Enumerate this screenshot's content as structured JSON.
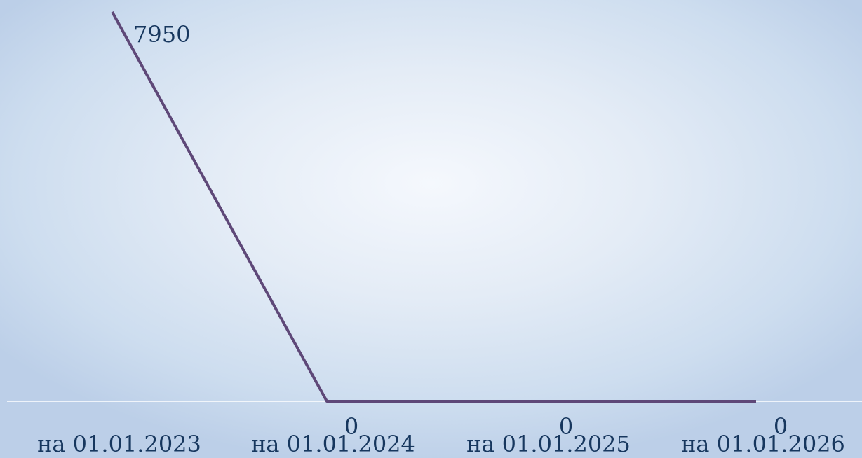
{
  "chart_data": {
    "type": "line",
    "title": "",
    "xlabel": "",
    "ylabel": "",
    "categories": [
      "на 01.01.2023",
      "на 01.01.2024",
      "на 01.01.2025",
      "на 01.01.2026"
    ],
    "series": [
      {
        "values": [
          7950,
          0,
          0,
          0
        ],
        "color": "#5e4878"
      }
    ],
    "data_labels": [
      "7950",
      "0",
      "0",
      "0"
    ],
    "ylim": [
      0,
      7950
    ],
    "grid": false,
    "legend": "none",
    "axis_color": "#ffffff",
    "label_color": "#17375e"
  }
}
